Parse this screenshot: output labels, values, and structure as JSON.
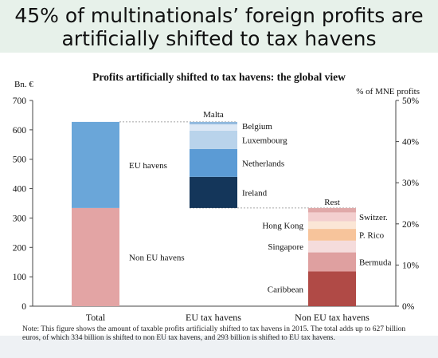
{
  "header": {
    "title_line1": "45% of multinationals’ foreign profits are",
    "title_line2": "artificially shifted to tax havens"
  },
  "chart_data": {
    "type": "bar",
    "title": "Profits artificially shifted to tax havens: the global view",
    "ylabel": "Bn. €",
    "y2label": "% of MNE profits",
    "ylim": [
      0,
      700
    ],
    "yticks": [
      0,
      100,
      200,
      300,
      400,
      500,
      600,
      700
    ],
    "y2ticks": [
      "0%",
      "10%",
      "20%",
      "30%",
      "40%",
      "50%"
    ],
    "categories": [
      "Total",
      "EU tax havens",
      "Non EU tax havens"
    ],
    "stacks": [
      {
        "category": "Total",
        "segments": [
          {
            "name": "Non EU havens",
            "value": 334,
            "color": "#e3a4a4"
          },
          {
            "name": "EU havens",
            "value": 293,
            "color": "#6aa6d9"
          }
        ]
      },
      {
        "category": "EU tax havens",
        "base": 334,
        "segments": [
          {
            "name": "Ireland",
            "value": 106,
            "color": "#14365a"
          },
          {
            "name": "Netherlands",
            "value": 95,
            "color": "#5b9bd5"
          },
          {
            "name": "Luxembourg",
            "value": 62,
            "color": "#b9d3eb"
          },
          {
            "name": "Belgium",
            "value": 22,
            "color": "#dce8f5"
          },
          {
            "name": "Malta",
            "value": 8,
            "color": "#8fb8dd"
          }
        ]
      },
      {
        "category": "Non EU tax havens",
        "segments": [
          {
            "name": "Caribbean",
            "value": 118,
            "color": "#b04a46"
          },
          {
            "name": "Bermuda",
            "value": 65,
            "color": "#dfa0a0"
          },
          {
            "name": "Singapore",
            "value": 40,
            "color": "#f5dcdc"
          },
          {
            "name": "P. Rico",
            "value": 40,
            "color": "#f7c49b"
          },
          {
            "name": "Hong Kong",
            "value": 26,
            "color": "#fbe6d6"
          },
          {
            "name": "Switzer.",
            "value": 30,
            "color": "#f3cfcf"
          },
          {
            "name": "Rest",
            "value": 15,
            "color": "#e0a9a9"
          }
        ]
      }
    ],
    "grid": false
  },
  "note": "Note:  This figure shows the amount of taxable profits artificially shifted to tax havens in 2015. The total adds up to 627 billion euros, of which 334 billion is shifted to non EU tax havens, and 293 billion is shifted to EU tax havens."
}
